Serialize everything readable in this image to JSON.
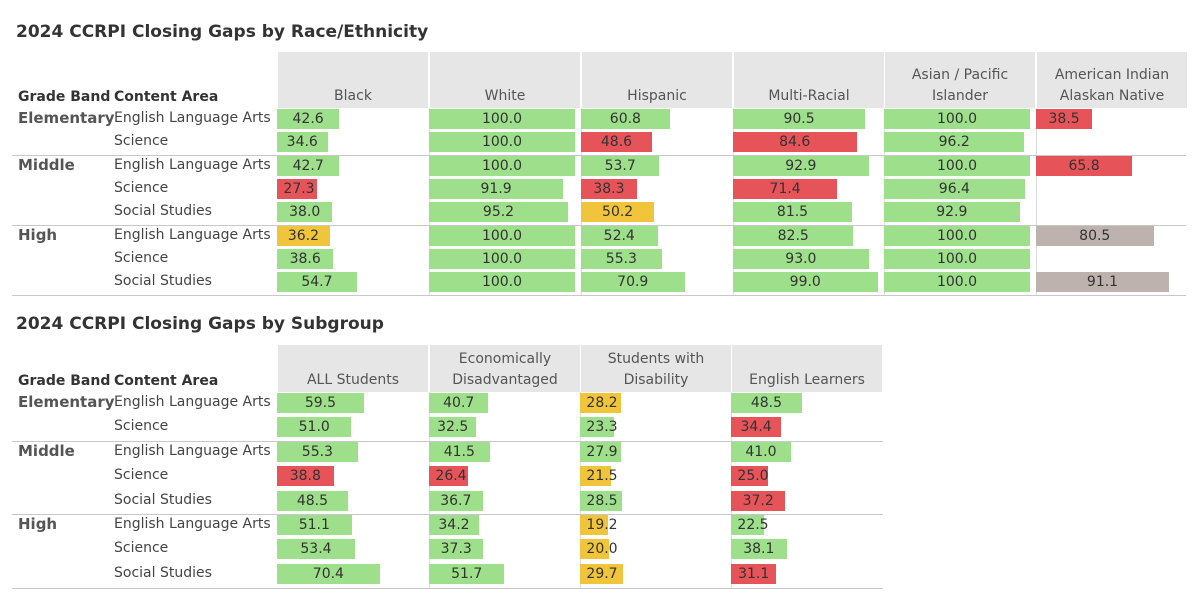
{
  "colors": {
    "green": "#9ddf8a",
    "red": "#e65459",
    "yellow": "#f0c53c",
    "gray": "#bdb2ae",
    "ref": "#dcdcdc"
  },
  "chart_data": [
    {
      "type": "table",
      "title": "2024 CCRPI Closing Gaps by Race/Ethnicity",
      "row_headers": [
        "Grade Band",
        "Content Area"
      ],
      "columns": [
        "Black",
        "White",
        "Hispanic",
        "Multi-Racial",
        "Asian / Pacific Islander",
        "American Indian Alaskan Native"
      ],
      "bands": [
        {
          "name": "Elementary",
          "rows": [
            {
              "area": "English Language Arts",
              "values": [
                42.6,
                100.0,
                60.8,
                90.5,
                100.0,
                38.5
              ],
              "colors": [
                "green",
                "green",
                "green",
                "green",
                "green",
                "red"
              ]
            },
            {
              "area": "Science",
              "values": [
                34.6,
                100.0,
                48.6,
                84.6,
                96.2,
                null
              ],
              "colors": [
                "green",
                "green",
                "red",
                "red",
                "green",
                null
              ]
            }
          ]
        },
        {
          "name": "Middle",
          "rows": [
            {
              "area": "English Language Arts",
              "values": [
                42.7,
                100.0,
                53.7,
                92.9,
                100.0,
                65.8
              ],
              "colors": [
                "green",
                "green",
                "green",
                "green",
                "green",
                "red"
              ]
            },
            {
              "area": "Science",
              "values": [
                27.3,
                91.9,
                38.3,
                71.4,
                96.4,
                null
              ],
              "colors": [
                "red",
                "green",
                "red",
                "red",
                "green",
                null
              ]
            },
            {
              "area": "Social Studies",
              "values": [
                38.0,
                95.2,
                50.2,
                81.5,
                92.9,
                null
              ],
              "colors": [
                "green",
                "green",
                "yellow",
                "green",
                "green",
                null
              ]
            }
          ]
        },
        {
          "name": "High",
          "rows": [
            {
              "area": "English Language Arts",
              "values": [
                36.2,
                100.0,
                52.4,
                82.5,
                100.0,
                80.5
              ],
              "colors": [
                "yellow",
                "green",
                "green",
                "green",
                "green",
                "gray"
              ]
            },
            {
              "area": "Science",
              "values": [
                38.6,
                100.0,
                55.3,
                93.0,
                100.0,
                null
              ],
              "colors": [
                "green",
                "green",
                "green",
                "green",
                "green",
                null
              ]
            },
            {
              "area": "Social Studies",
              "values": [
                54.7,
                100.0,
                70.9,
                99.0,
                100.0,
                91.1
              ],
              "colors": [
                "green",
                "green",
                "green",
                "green",
                "green",
                "gray"
              ]
            }
          ]
        }
      ]
    },
    {
      "type": "table",
      "title": "2024 CCRPI Closing Gaps by Subgroup",
      "row_headers": [
        "Grade Band",
        "Content Area"
      ],
      "columns": [
        "ALL Students",
        "Economically Disadvantaged",
        "Students with Disability",
        "English Learners"
      ],
      "bands": [
        {
          "name": "Elementary",
          "rows": [
            {
              "area": "English Language Arts",
              "values": [
                59.5,
                40.7,
                28.2,
                48.5
              ],
              "colors": [
                "green",
                "green",
                "yellow",
                "green"
              ]
            },
            {
              "area": "Science",
              "values": [
                51.0,
                32.5,
                23.3,
                34.4
              ],
              "colors": [
                "green",
                "green",
                "green",
                "red"
              ]
            }
          ]
        },
        {
          "name": "Middle",
          "rows": [
            {
              "area": "English Language Arts",
              "values": [
                55.3,
                41.5,
                27.9,
                41.0
              ],
              "colors": [
                "green",
                "green",
                "green",
                "green"
              ]
            },
            {
              "area": "Science",
              "values": [
                38.8,
                26.4,
                21.5,
                25.0
              ],
              "colors": [
                "red",
                "red",
                "yellow",
                "red"
              ]
            },
            {
              "area": "Social Studies",
              "values": [
                48.5,
                36.7,
                28.5,
                37.2
              ],
              "colors": [
                "green",
                "green",
                "green",
                "red"
              ]
            }
          ]
        },
        {
          "name": "High",
          "rows": [
            {
              "area": "English Language Arts",
              "values": [
                51.1,
                34.2,
                19.2,
                22.5
              ],
              "colors": [
                "green",
                "green",
                "yellow",
                "green"
              ]
            },
            {
              "area": "Science",
              "values": [
                53.4,
                37.3,
                20.0,
                38.1
              ],
              "colors": [
                "green",
                "green",
                "yellow",
                "green"
              ]
            },
            {
              "area": "Social Studies",
              "values": [
                70.4,
                51.7,
                29.7,
                31.1
              ],
              "colors": [
                "green",
                "green",
                "yellow",
                "red"
              ]
            }
          ]
        }
      ]
    }
  ]
}
